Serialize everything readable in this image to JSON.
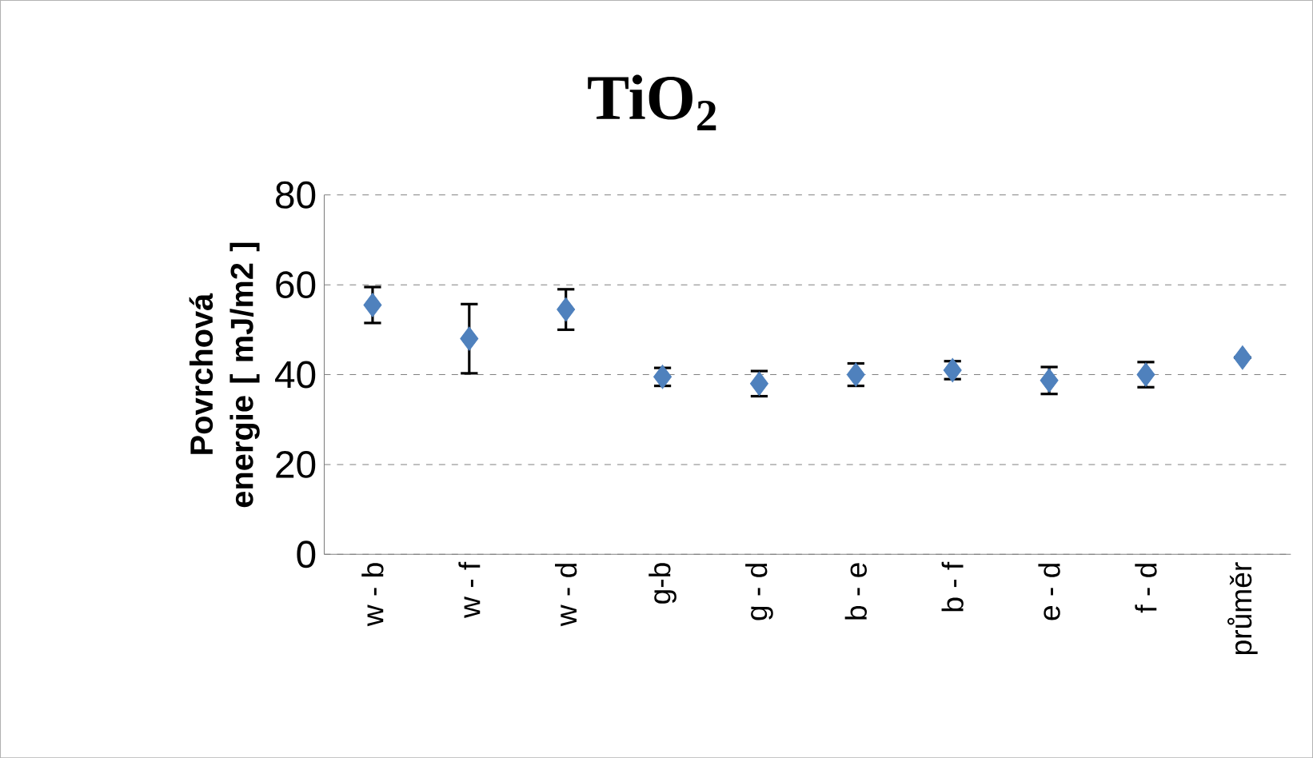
{
  "chart_data": {
    "type": "scatter",
    "title": "TiO$_{2}$",
    "ylabel": "Povrchová energie [ mJ/m2 ]",
    "categories": [
      "w - b",
      "w - f",
      "w - d",
      "g-b",
      "g - d",
      "b - e",
      "b - f",
      "e - d",
      "f - d",
      "průměr"
    ],
    "values": [
      55.5,
      48,
      54.5,
      39.5,
      38,
      40,
      41,
      38.7,
      40,
      43.8
    ],
    "errors": [
      4,
      7.7,
      4.5,
      2,
      2.8,
      2.5,
      2,
      3,
      2.8,
      null
    ],
    "color": "#4f81bd",
    "marker": "diamond",
    "ylim": [
      0,
      80
    ],
    "yticks": [
      0,
      20,
      40,
      60,
      80
    ],
    "grid": "y"
  }
}
